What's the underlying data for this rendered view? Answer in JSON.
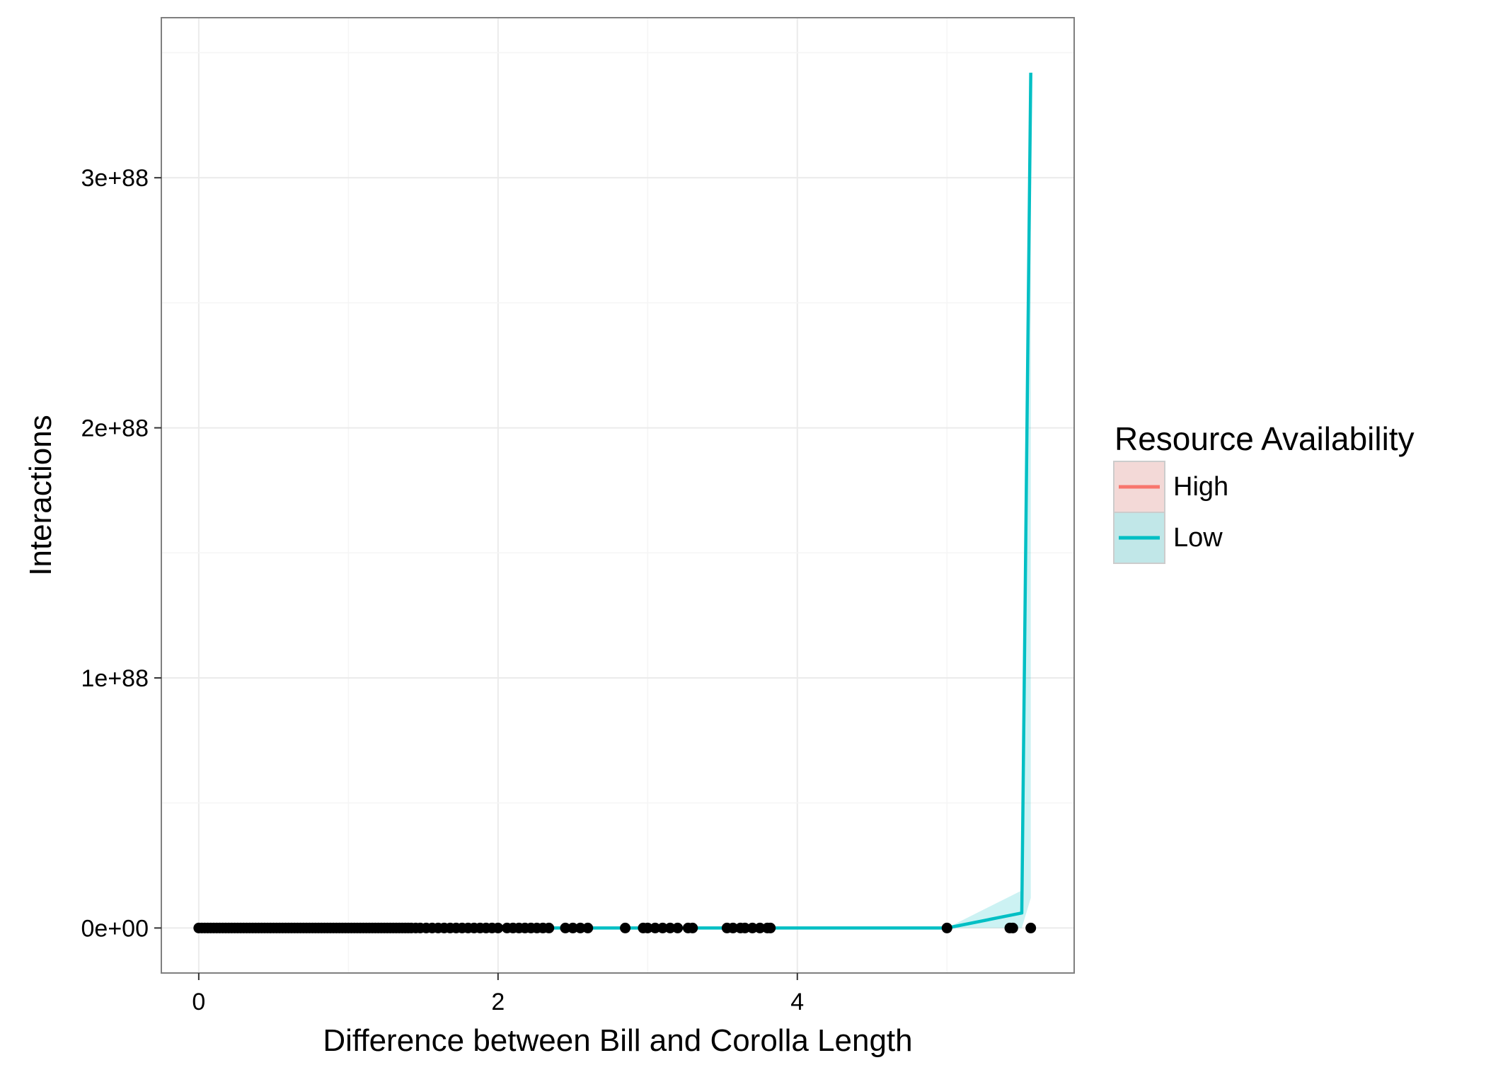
{
  "chart_data": {
    "type": "line",
    "title": "",
    "xlabel": "Difference between Bill and Corolla Length",
    "ylabel": "Interactions",
    "xlim": [
      -0.25,
      5.85
    ],
    "ylim": [
      -1.8e+87,
      3.64e+88
    ],
    "x_ticks": [
      0,
      2,
      4
    ],
    "x_tick_labels": [
      "0",
      "2",
      "4"
    ],
    "y_ticks": [
      0,
      1e+88,
      2e+88,
      3e+88
    ],
    "y_tick_labels": [
      "0e+00",
      "1e+88",
      "2e+88",
      "3e+88"
    ],
    "grid": true,
    "legend": {
      "title": "Resource Availability",
      "placement": "right",
      "entries": [
        "High",
        "Low"
      ]
    },
    "colors": {
      "High": "#f8766d",
      "Low": "#00bfc4",
      "points": "#000000",
      "panel_border": "#7f7f7f",
      "grid": "#ebebeb"
    },
    "series": [
      {
        "name": "Low",
        "x": [
          0,
          0.5,
          1.0,
          1.5,
          2.0,
          2.5,
          3.0,
          3.5,
          4.0,
          4.5,
          5.0,
          5.5,
          5.56
        ],
        "values": [
          0,
          0,
          0,
          0,
          0,
          0,
          0,
          0,
          0,
          0,
          0,
          6e+86,
          3.42e+88
        ],
        "ribbon_lower": [
          0,
          0,
          0,
          0,
          0,
          0,
          0,
          0,
          0,
          0,
          0,
          0,
          1.2e+87
        ],
        "ribbon_upper": [
          0,
          0,
          0,
          0,
          0,
          0,
          0,
          0,
          0,
          0,
          0,
          1.5e+87,
          3.42e+88
        ]
      },
      {
        "name": "High",
        "x": [],
        "values": []
      }
    ],
    "points": {
      "y": 0,
      "x": [
        0.0,
        0.02,
        0.04,
        0.06,
        0.08,
        0.1,
        0.12,
        0.14,
        0.16,
        0.18,
        0.2,
        0.22,
        0.24,
        0.26,
        0.28,
        0.3,
        0.32,
        0.34,
        0.36,
        0.38,
        0.4,
        0.42,
        0.44,
        0.46,
        0.48,
        0.5,
        0.52,
        0.54,
        0.56,
        0.58,
        0.6,
        0.62,
        0.64,
        0.66,
        0.68,
        0.7,
        0.72,
        0.74,
        0.76,
        0.78,
        0.8,
        0.82,
        0.84,
        0.86,
        0.88,
        0.9,
        0.92,
        0.94,
        0.96,
        0.98,
        1.0,
        1.02,
        1.04,
        1.06,
        1.08,
        1.1,
        1.12,
        1.14,
        1.16,
        1.18,
        1.2,
        1.22,
        1.24,
        1.26,
        1.28,
        1.3,
        1.32,
        1.34,
        1.36,
        1.38,
        1.4,
        1.42,
        1.45,
        1.48,
        1.52,
        1.56,
        1.6,
        1.64,
        1.68,
        1.72,
        1.76,
        1.8,
        1.84,
        1.88,
        1.92,
        1.96,
        2.0,
        2.06,
        2.1,
        2.14,
        2.18,
        2.22,
        2.26,
        2.3,
        2.34,
        2.45,
        2.5,
        2.55,
        2.6,
        2.85,
        2.97,
        3.0,
        3.05,
        3.1,
        3.15,
        3.2,
        3.27,
        3.3,
        3.53,
        3.57,
        3.62,
        3.65,
        3.7,
        3.75,
        3.8,
        3.82,
        5.0,
        5.42,
        5.44,
        5.56
      ]
    }
  }
}
